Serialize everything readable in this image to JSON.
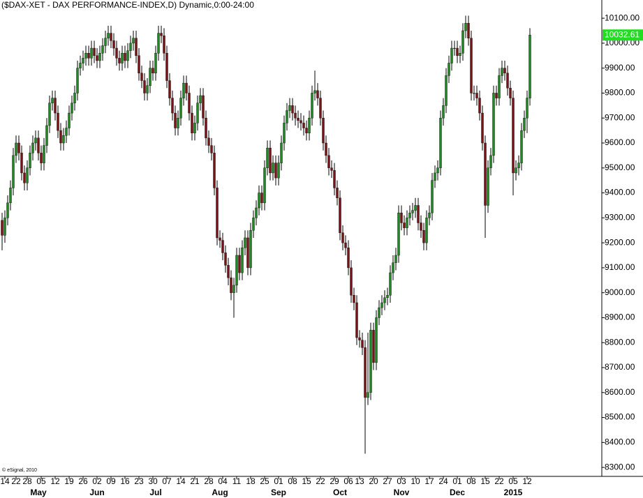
{
  "chart_data": {
    "type": "candlestick",
    "title": "($DAX-XET - DAX PERFORMANCE-INDEX,D) Dynamic,0:00-24:00",
    "annotation": "© eSignal, 2010",
    "up_color": "#1f8a1f",
    "down_color": "#7a1414",
    "label_color": "#22dd22",
    "ylim": [
      8264,
      10173
    ],
    "yticks": [
      {
        "value": 8300,
        "label": "8300.00"
      },
      {
        "value": 8400,
        "label": "8400.00"
      },
      {
        "value": 8500,
        "label": "8500.00"
      },
      {
        "value": 8600,
        "label": "8600.00"
      },
      {
        "value": 8700,
        "label": "8700.00"
      },
      {
        "value": 8800,
        "label": "8800.00"
      },
      {
        "value": 8900,
        "label": "8900.00"
      },
      {
        "value": 9000,
        "label": "9000.00"
      },
      {
        "value": 9100,
        "label": "9100.00"
      },
      {
        "value": 9200,
        "label": "9200.00"
      },
      {
        "value": 9300,
        "label": "9300.00"
      },
      {
        "value": 9400,
        "label": "9400.00"
      },
      {
        "value": 9500,
        "label": "9500.00"
      },
      {
        "value": 9600,
        "label": "9600.00"
      },
      {
        "value": 9700,
        "label": "9700.00"
      },
      {
        "value": 9800,
        "label": "9800.00"
      },
      {
        "value": 9900,
        "label": "9900.00"
      },
      {
        "value": 10000,
        "label": "10000.00"
      },
      {
        "value": 10100,
        "label": "10100.00"
      }
    ],
    "categories": [
      null,
      "14",
      null,
      null,
      null,
      "22",
      null,
      null,
      null,
      "28",
      null,
      null,
      null,
      null,
      "05",
      null,
      null,
      null,
      null,
      "12",
      null,
      null,
      null,
      null,
      "19",
      null,
      null,
      null,
      null,
      "26",
      null,
      null,
      null,
      null,
      "02",
      null,
      null,
      null,
      null,
      "09",
      null,
      null,
      null,
      null,
      "16",
      null,
      null,
      null,
      null,
      "23",
      null,
      null,
      null,
      null,
      "30",
      null,
      null,
      null,
      null,
      "07",
      null,
      null,
      null,
      null,
      "14",
      null,
      null,
      null,
      null,
      "21",
      null,
      null,
      null,
      null,
      "28",
      null,
      null,
      null,
      null,
      "04",
      null,
      null,
      null,
      null,
      "11",
      null,
      null,
      null,
      null,
      "18",
      null,
      null,
      null,
      null,
      "25",
      null,
      null,
      null,
      null,
      "01",
      null,
      null,
      null,
      null,
      "08",
      null,
      null,
      null,
      null,
      "15",
      null,
      null,
      null,
      null,
      "22",
      null,
      null,
      null,
      null,
      "29",
      null,
      null,
      null,
      null,
      "06",
      null,
      null,
      null,
      "13",
      null,
      null,
      null,
      null,
      "20",
      null,
      null,
      null,
      null,
      "27",
      null,
      null,
      null,
      null,
      "03",
      null,
      null,
      null,
      null,
      "10",
      null,
      null,
      null,
      null,
      "17",
      null,
      null,
      null,
      null,
      "24",
      null,
      null,
      null,
      null,
      "01",
      null,
      null,
      null,
      null,
      "08",
      null,
      null,
      null,
      null,
      "15",
      null,
      null,
      null,
      null,
      "22",
      null,
      null,
      null,
      null,
      "05",
      null,
      null,
      null,
      null,
      "12",
      null
    ],
    "months": [
      null,
      null,
      null,
      null,
      null,
      null,
      null,
      null,
      null,
      null,
      null,
      null,
      null,
      "May",
      null,
      null,
      null,
      null,
      null,
      null,
      null,
      null,
      null,
      null,
      null,
      null,
      null,
      null,
      null,
      null,
      null,
      null,
      null,
      null,
      "Jun",
      null,
      null,
      null,
      null,
      null,
      null,
      null,
      null,
      null,
      null,
      null,
      null,
      null,
      null,
      null,
      null,
      null,
      null,
      null,
      null,
      "Jul",
      null,
      null,
      null,
      null,
      null,
      null,
      null,
      null,
      null,
      null,
      null,
      null,
      null,
      null,
      null,
      null,
      null,
      null,
      null,
      null,
      null,
      null,
      "Aug",
      null,
      null,
      null,
      null,
      null,
      null,
      null,
      null,
      null,
      null,
      null,
      null,
      null,
      null,
      null,
      null,
      null,
      null,
      null,
      null,
      "Sep",
      null,
      null,
      null,
      null,
      null,
      null,
      null,
      null,
      null,
      null,
      null,
      null,
      null,
      null,
      null,
      null,
      null,
      null,
      null,
      null,
      null,
      "Oct",
      null,
      null,
      null,
      null,
      null,
      null,
      null,
      null,
      null,
      null,
      null,
      null,
      null,
      null,
      null,
      null,
      null,
      null,
      null,
      null,
      null,
      "Nov",
      null,
      null,
      null,
      null,
      null,
      null,
      null,
      null,
      null,
      null,
      null,
      null,
      null,
      null,
      null,
      null,
      null,
      null,
      null,
      "Dec",
      null,
      null,
      null,
      null,
      null,
      null,
      null,
      null,
      null,
      null,
      null,
      null,
      null,
      null,
      null,
      null,
      null,
      null,
      null,
      "2015",
      null,
      null,
      null,
      null,
      null,
      null
    ],
    "open": [
      9290,
      9230,
      9300,
      9360,
      9420,
      9550,
      9600,
      9560,
      9480,
      9440,
      9500,
      9560,
      9600,
      9620,
      9560,
      9520,
      9590,
      9670,
      9760,
      9780,
      9720,
      9650,
      9600,
      9630,
      9660,
      9720,
      9760,
      9800,
      9900,
      9920,
      9940,
      9960,
      9940,
      9980,
      9950,
      9930,
      9960,
      9990,
      10020,
      10040,
      10010,
      9980,
      9940,
      9920,
      9960,
      9930,
      9970,
      10000,
      10020,
      9950,
      9880,
      9850,
      9800,
      9830,
      9900,
      9880,
      9960,
      10040,
      10030,
      9960,
      9850,
      9780,
      9720,
      9660,
      9700,
      9780,
      9840,
      9800,
      9720,
      9640,
      9680,
      9760,
      9790,
      9700,
      9620,
      9590,
      9560,
      9420,
      9220,
      9210,
      9160,
      9110,
      9060,
      9000,
      9030,
      9150,
      9080,
      9180,
      9220,
      9100,
      9250,
      9300,
      9340,
      9400,
      9360,
      9500,
      9580,
      9480,
      9520,
      9460,
      9520,
      9600,
      9680,
      9730,
      9750,
      9720,
      9700,
      9690,
      9680,
      9660,
      9640,
      9700,
      9800,
      9810,
      9780,
      9700,
      9600,
      9550,
      9500,
      9490,
      9420,
      9380,
      9240,
      9200,
      9180,
      9100,
      8990,
      8960,
      8820,
      8810,
      8780,
      8580,
      8600,
      8850,
      8720,
      8900,
      8940,
      8960,
      8980,
      8990,
      9080,
      9120,
      9150,
      9320,
      9280,
      9260,
      9300,
      9320,
      9330,
      9350,
      9280,
      9250,
      9200,
      9300,
      9320,
      9450,
      9480,
      9500,
      9700,
      9750,
      9870,
      9920,
      9980,
      9980,
      9950,
      9960,
      10050,
      10080,
      10020,
      9800,
      9800,
      9780,
      9720,
      9600,
      9350,
      9500,
      9550,
      9800,
      9780,
      9870,
      9900,
      9880,
      9820,
      9780,
      9480,
      9500,
      9520,
      9650,
      9700,
      9780
    ],
    "high": [
      9320,
      9330,
      9390,
      9450,
      9580,
      9630,
      9630,
      9590,
      9510,
      9530,
      9590,
      9630,
      9650,
      9650,
      9590,
      9620,
      9700,
      9790,
      9810,
      9810,
      9750,
      9680,
      9660,
      9690,
      9750,
      9790,
      9830,
      9930,
      9950,
      9970,
      9990,
      9990,
      10010,
      10010,
      9980,
      9990,
      10020,
      10050,
      10070,
      10070,
      10040,
      10010,
      9970,
      9990,
      9990,
      10000,
      10030,
      10050,
      10050,
      9980,
      9910,
      9880,
      9860,
      9930,
      9930,
      9990,
      10070,
      10070,
      10060,
      9990,
      9880,
      9810,
      9750,
      9730,
      9810,
      9870,
      9870,
      9830,
      9750,
      9710,
      9790,
      9820,
      9820,
      9730,
      9650,
      9620,
      9590,
      9450,
      9250,
      9240,
      9190,
      9140,
      9090,
      9060,
      9180,
      9180,
      9210,
      9250,
      9250,
      9280,
      9330,
      9370,
      9430,
      9430,
      9530,
      9610,
      9610,
      9550,
      9550,
      9550,
      9630,
      9710,
      9760,
      9780,
      9780,
      9750,
      9730,
      9720,
      9710,
      9690,
      9730,
      9830,
      9890,
      9840,
      9810,
      9730,
      9630,
      9580,
      9530,
      9520,
      9450,
      9410,
      9270,
      9230,
      9210,
      9130,
      9020,
      8990,
      8850,
      8840,
      8810,
      8840,
      8880,
      8880,
      8930,
      8970,
      8990,
      9010,
      9020,
      9110,
      9150,
      9180,
      9350,
      9350,
      9310,
      9330,
      9350,
      9360,
      9380,
      9380,
      9310,
      9280,
      9330,
      9350,
      9480,
      9510,
      9530,
      9730,
      9780,
      9900,
      9950,
      10010,
      10010,
      10010,
      9990,
      10080,
      10110,
      10110,
      10050,
      9830,
      9830,
      9810,
      9750,
      9630,
      9530,
      9580,
      9830,
      9830,
      9900,
      9930,
      9930,
      9910,
      9850,
      9810,
      9530,
      9550,
      9680,
      9730,
      9810,
      10060
    ],
    "low": [
      9170,
      9200,
      9270,
      9330,
      9390,
      9520,
      9530,
      9450,
      9410,
      9410,
      9470,
      9530,
      9570,
      9530,
      9490,
      9490,
      9560,
      9640,
      9730,
      9690,
      9620,
      9570,
      9570,
      9600,
      9630,
      9690,
      9730,
      9770,
      9870,
      9890,
      9910,
      9910,
      9910,
      9920,
      9900,
      9900,
      9930,
      9960,
      9990,
      9980,
      9950,
      9910,
      9890,
      9890,
      9900,
      9900,
      9940,
      9970,
      9920,
      9850,
      9820,
      9770,
      9770,
      9800,
      9850,
      9850,
      9930,
      10000,
      9930,
      9820,
      9750,
      9690,
      9630,
      9630,
      9670,
      9750,
      9770,
      9690,
      9610,
      9610,
      9650,
      9730,
      9670,
      9590,
      9560,
      9530,
      9390,
      9190,
      9180,
      9130,
      9080,
      9030,
      8970,
      8900,
      9000,
      9050,
      9050,
      9150,
      9070,
      9070,
      9220,
      9270,
      9310,
      9330,
      9330,
      9470,
      9450,
      9450,
      9430,
      9430,
      9490,
      9570,
      9650,
      9700,
      9690,
      9670,
      9660,
      9650,
      9630,
      9610,
      9610,
      9670,
      9770,
      9750,
      9670,
      9570,
      9520,
      9470,
      9460,
      9390,
      9350,
      9210,
      9170,
      9150,
      9070,
      8960,
      8930,
      8790,
      8780,
      8750,
      8355,
      8550,
      8570,
      8690,
      8690,
      8870,
      8910,
      8930,
      8950,
      8960,
      9050,
      9090,
      9120,
      9250,
      9230,
      9230,
      9270,
      9290,
      9300,
      9250,
      9220,
      9170,
      9170,
      9270,
      9290,
      9420,
      9450,
      9470,
      9670,
      9720,
      9840,
      9890,
      9950,
      9920,
      9920,
      9930,
      10020,
      9990,
      9770,
      9770,
      9750,
      9690,
      9570,
      9220,
      9320,
      9470,
      9520,
      9750,
      9750,
      9840,
      9850,
      9790,
      9750,
      9390,
      9450,
      9470,
      9490,
      9620,
      9640,
      9750
    ],
    "close": [
      9230,
      9300,
      9360,
      9420,
      9550,
      9600,
      9560,
      9480,
      9440,
      9500,
      9560,
      9600,
      9620,
      9560,
      9520,
      9590,
      9670,
      9760,
      9780,
      9720,
      9650,
      9600,
      9630,
      9660,
      9720,
      9760,
      9800,
      9900,
      9920,
      9940,
      9960,
      9940,
      9980,
      9950,
      9930,
      9960,
      9990,
      10020,
      10040,
      10010,
      9980,
      9940,
      9920,
      9960,
      9930,
      9970,
      10000,
      10020,
      9950,
      9880,
      9850,
      9800,
      9830,
      9900,
      9880,
      9960,
      10040,
      10030,
      9960,
      9850,
      9780,
      9720,
      9660,
      9700,
      9780,
      9840,
      9800,
      9720,
      9640,
      9680,
      9760,
      9790,
      9700,
      9620,
      9590,
      9560,
      9420,
      9220,
      9210,
      9160,
      9110,
      9060,
      9000,
      9030,
      9150,
      9080,
      9180,
      9220,
      9100,
      9250,
      9300,
      9340,
      9400,
      9360,
      9500,
      9580,
      9480,
      9520,
      9460,
      9520,
      9600,
      9680,
      9730,
      9750,
      9720,
      9700,
      9690,
      9680,
      9660,
      9640,
      9700,
      9800,
      9810,
      9780,
      9700,
      9600,
      9550,
      9500,
      9490,
      9420,
      9380,
      9240,
      9200,
      9180,
      9100,
      8990,
      8960,
      8820,
      8810,
      8780,
      8580,
      8600,
      8850,
      8720,
      8900,
      8940,
      8960,
      8980,
      8990,
      9080,
      9120,
      9150,
      9320,
      9280,
      9260,
      9300,
      9320,
      9330,
      9350,
      9280,
      9250,
      9200,
      9300,
      9320,
      9450,
      9480,
      9500,
      9700,
      9750,
      9870,
      9920,
      9980,
      9980,
      9950,
      9960,
      10050,
      10080,
      10020,
      9800,
      9800,
      9780,
      9720,
      9600,
      9350,
      9500,
      9550,
      9800,
      9780,
      9870,
      9900,
      9880,
      9820,
      9780,
      9480,
      9500,
      9520,
      9650,
      9700,
      9780,
      10032.61
    ]
  }
}
